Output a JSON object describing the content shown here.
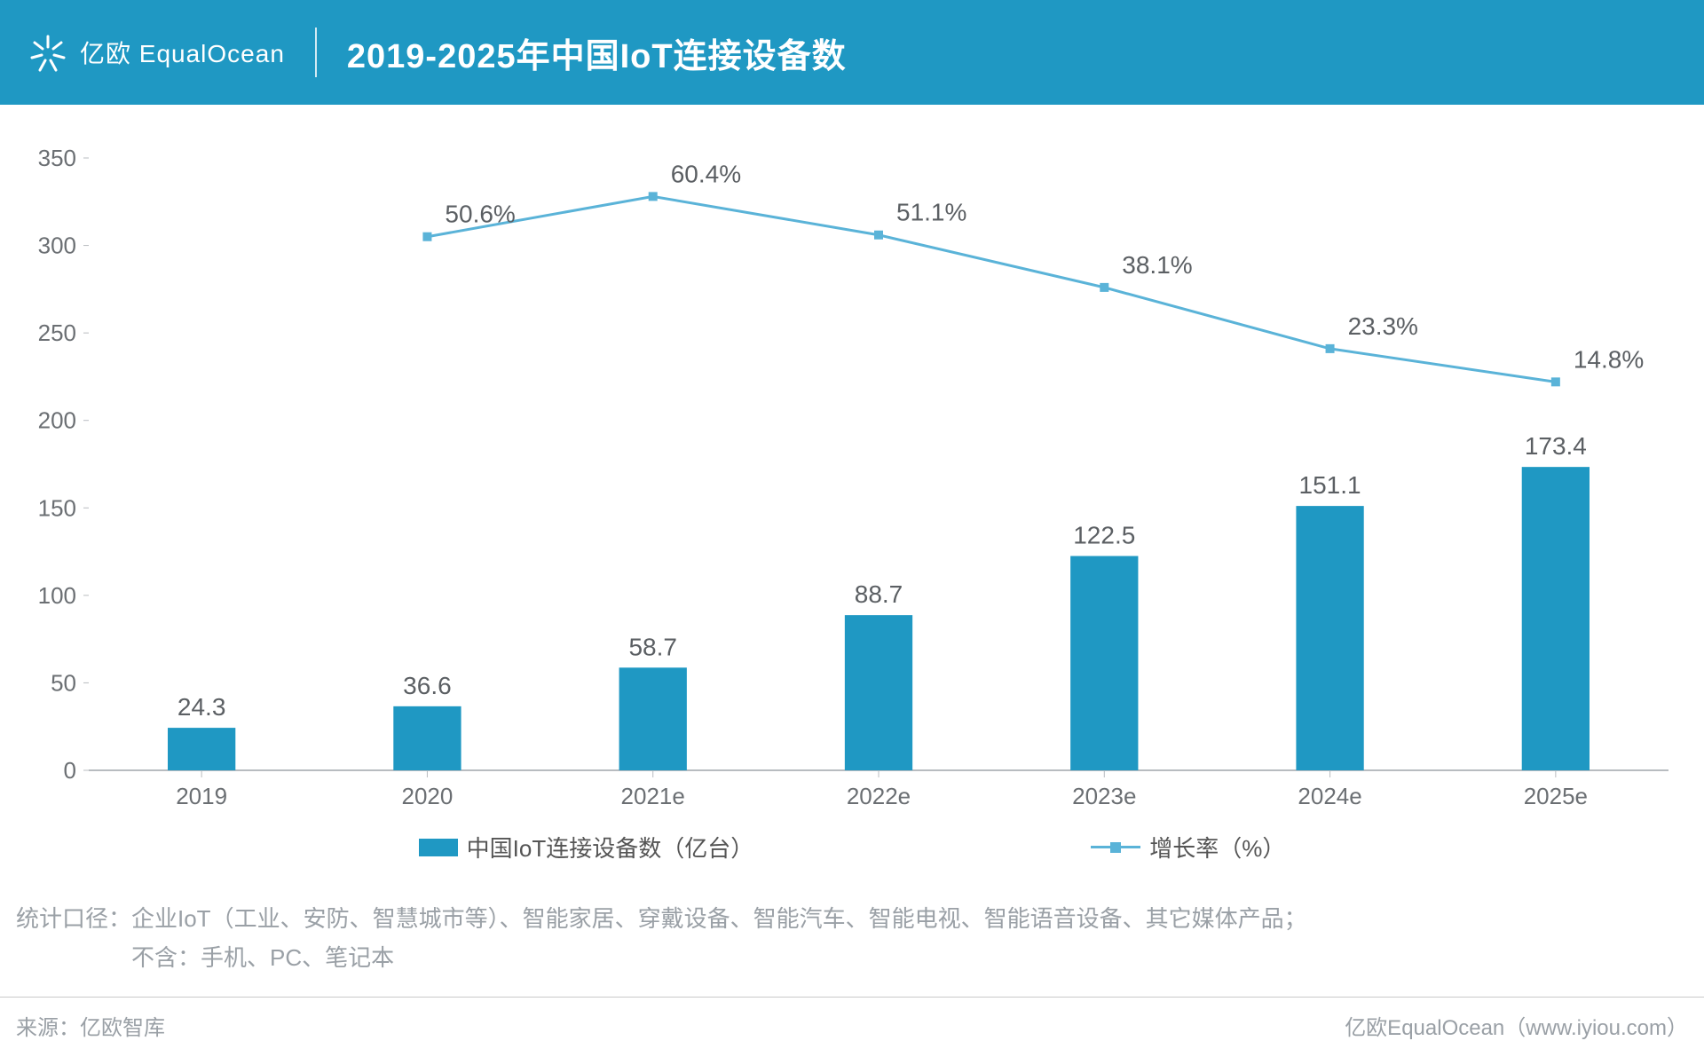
{
  "header": {
    "logo_text": "亿欧 EqualOcean",
    "title": "2019-2025年中国IoT连接设备数",
    "bg_color": "#1f98c3"
  },
  "chart": {
    "type": "bar+line",
    "categories": [
      "2019",
      "2020",
      "2021e",
      "2022e",
      "2023e",
      "2024e",
      "2025e"
    ],
    "bars": {
      "label": "中国IoT连接设备数（亿台）",
      "values": [
        24.3,
        36.6,
        58.7,
        88.7,
        122.5,
        151.1,
        173.4
      ],
      "color": "#1f98c3",
      "bar_width_ratio": 0.3
    },
    "line": {
      "label": "增长率（%）",
      "values": [
        null,
        50.6,
        60.4,
        51.1,
        38.1,
        23.3,
        14.8
      ],
      "display_y": [
        null,
        305,
        328,
        306,
        276,
        241,
        222
      ],
      "color": "#5ab3d8",
      "marker": "square",
      "marker_size": 10,
      "line_width": 3
    },
    "y_axis": {
      "min": 0,
      "max": 350,
      "tick_step": 50,
      "label_color": "#6b6f73",
      "label_fontsize": 26
    },
    "x_axis": {
      "label_color": "#6b6f73",
      "label_fontsize": 26,
      "axis_color": "#b8bcc0"
    },
    "value_label": {
      "color": "#5b5f63",
      "fontsize": 28
    },
    "background_color": "#ffffff"
  },
  "legend": {
    "bar_label": "中国IoT连接设备数（亿台）",
    "line_label": "增长率（%）"
  },
  "notes": {
    "line1": "统计口径：企业IoT（工业、安防、智慧城市等）、智能家居、穿戴设备、智能汽车、智能电视、智能语音设备、其它媒体产品；",
    "line2": "不含：手机、PC、笔记本"
  },
  "footer": {
    "left": "来源：亿欧智库",
    "right": "亿欧EqualOcean（www.iyiou.com）"
  }
}
